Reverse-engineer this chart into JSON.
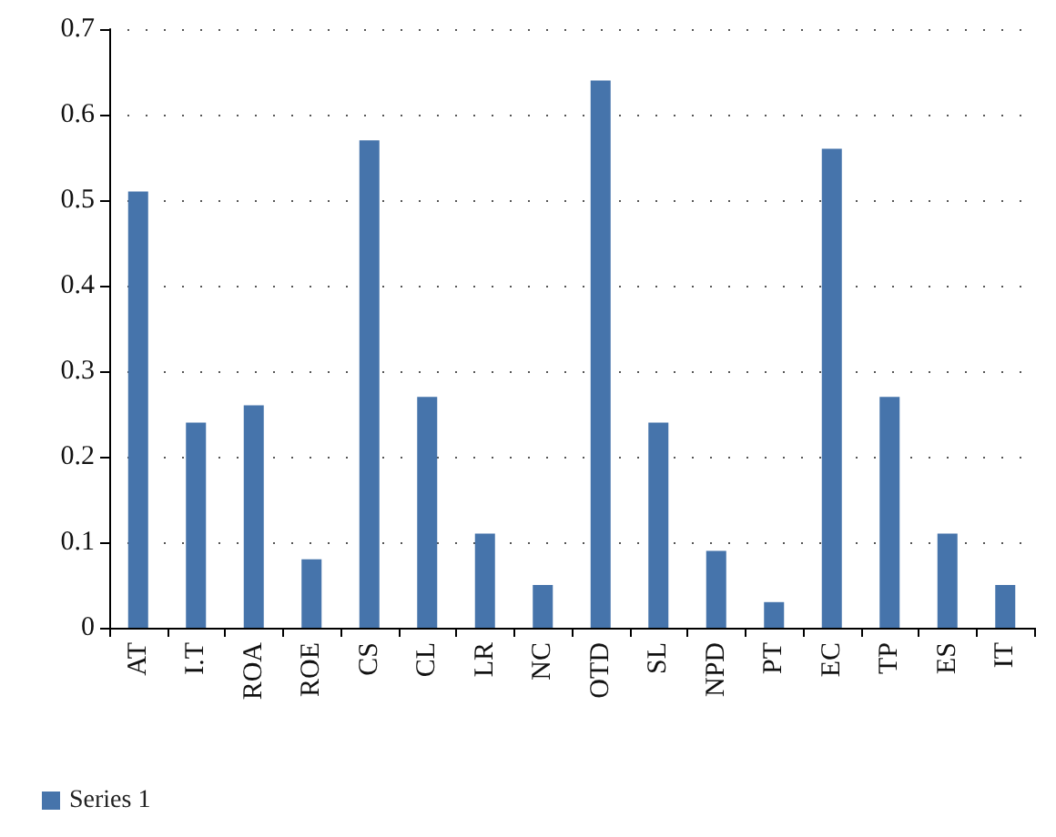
{
  "chart_data": {
    "type": "bar",
    "categories": [
      "AT",
      "I.T",
      "ROA",
      "ROE",
      "CS",
      "CL",
      "LR",
      "NC",
      "OTD",
      "SL",
      "NPD",
      "PT",
      "EC",
      "TP",
      "ES",
      "IT"
    ],
    "series": [
      {
        "name": "Series 1",
        "color": "#4674ab",
        "values": [
          0.51,
          0.24,
          0.26,
          0.08,
          0.57,
          0.27,
          0.11,
          0.05,
          0.64,
          0.24,
          0.09,
          0.03,
          0.56,
          0.27,
          0.11,
          0.05
        ]
      }
    ],
    "ylim": [
      0,
      0.7
    ],
    "yticks": [
      0,
      0.1,
      0.2,
      0.3,
      0.4,
      0.5,
      0.6,
      0.7
    ],
    "grid": "y",
    "legend": "bottom left"
  }
}
